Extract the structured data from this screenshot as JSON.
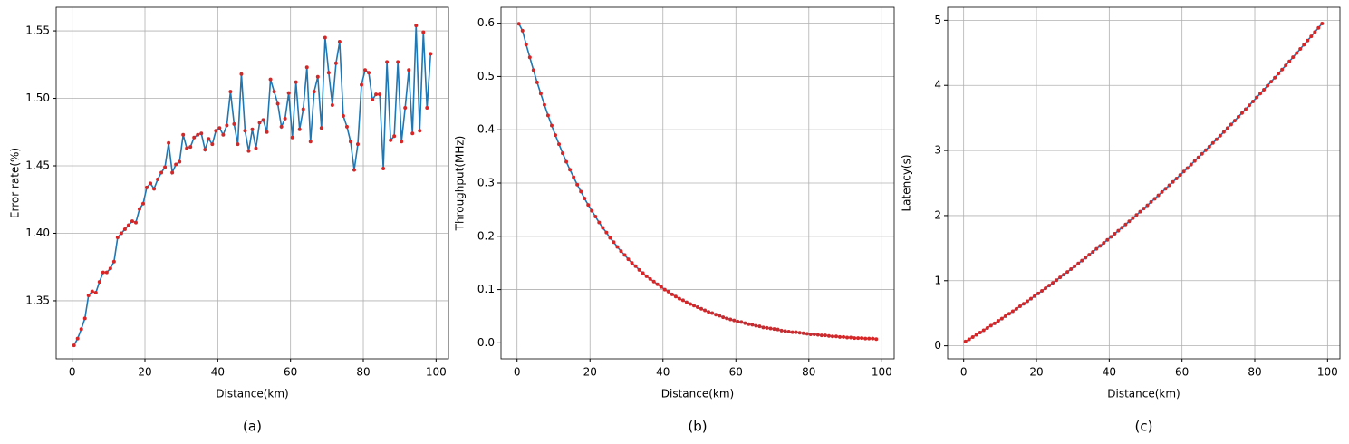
{
  "chart_data": [
    {
      "type": "line",
      "caption": "(a)",
      "xlabel": "Distance(km)",
      "ylabel": "Error rate(%)",
      "xlim": [
        -4.4,
        103.4
      ],
      "ylim": [
        1.307,
        1.5675
      ],
      "grid": true,
      "line_color": "#1f77b4",
      "marker_color": "#d62728",
      "xticks": [
        0,
        20,
        40,
        60,
        80,
        100
      ],
      "yticks": [
        1.35,
        {
          "value": 1.4,
          "label": "1.40"
        },
        1.45,
        {
          "value": 1.5,
          "label": "1.50"
        },
        1.55
      ],
      "x": [
        0.5,
        1.5,
        2.5,
        3.5,
        4.5,
        5.5,
        6.5,
        7.5,
        8.5,
        9.5,
        10.5,
        11.5,
        12.5,
        13.5,
        14.5,
        15.5,
        16.5,
        17.5,
        18.5,
        19.5,
        20.5,
        21.5,
        22.5,
        23.5,
        24.5,
        25.5,
        26.5,
        27.5,
        28.5,
        29.5,
        30.5,
        31.5,
        32.5,
        33.5,
        34.5,
        35.5,
        36.5,
        37.5,
        38.5,
        39.5,
        40.5,
        41.5,
        42.5,
        43.5,
        44.5,
        45.5,
        46.5,
        47.5,
        48.5,
        49.5,
        50.5,
        51.5,
        52.5,
        53.5,
        54.5,
        55.5,
        56.5,
        57.5,
        58.5,
        59.5,
        60.5,
        61.5,
        62.5,
        63.5,
        64.5,
        65.5,
        66.5,
        67.5,
        68.5,
        69.5,
        70.5,
        71.5,
        72.5,
        73.5,
        74.5,
        75.5,
        76.5,
        77.5,
        78.5,
        79.5,
        80.5,
        81.5,
        82.5,
        83.5,
        84.5,
        85.5,
        86.5,
        87.5,
        88.5,
        89.5,
        90.5,
        91.5,
        92.5,
        93.5,
        94.5,
        95.5,
        96.5,
        97.5,
        98.5
      ],
      "values": [
        1.317,
        1.322,
        1.329,
        1.337,
        1.354,
        1.357,
        1.356,
        1.364,
        1.371,
        1.371,
        1.374,
        1.379,
        1.397,
        1.4,
        1.403,
        1.406,
        1.409,
        1.408,
        1.418,
        1.422,
        1.434,
        1.437,
        1.433,
        1.44,
        1.445,
        1.449,
        1.467,
        1.445,
        1.451,
        1.453,
        1.473,
        1.463,
        1.464,
        1.471,
        1.473,
        1.474,
        1.462,
        1.47,
        1.466,
        1.476,
        1.478,
        1.473,
        1.48,
        1.505,
        1.481,
        1.466,
        1.518,
        1.476,
        1.461,
        1.477,
        1.463,
        1.482,
        1.484,
        1.475,
        1.514,
        1.505,
        1.496,
        1.479,
        1.485,
        1.504,
        1.471,
        1.512,
        1.477,
        1.492,
        1.523,
        1.468,
        1.505,
        1.516,
        1.478,
        1.545,
        1.519,
        1.495,
        1.526,
        1.542,
        1.487,
        1.479,
        1.468,
        1.447,
        1.466,
        1.51,
        1.521,
        1.519,
        1.499,
        1.503,
        1.503,
        1.448,
        1.527,
        1.469,
        1.472,
        1.527,
        1.468,
        1.493,
        1.521,
        1.474,
        1.554,
        1.476,
        1.549,
        1.493,
        1.533
      ]
    },
    {
      "type": "line",
      "caption": "(b)",
      "xlabel": "Distance(km)",
      "ylabel": "Throughput(MHz)",
      "xlim": [
        -4.4,
        103.4
      ],
      "ylim": [
        -0.03,
        0.63
      ],
      "grid": true,
      "line_color": "#1f77b4",
      "marker_color": "#d62728",
      "xticks": [
        0,
        20,
        40,
        60,
        80,
        100
      ],
      "yticks": [
        {
          "value": 0,
          "label": "0.0"
        },
        0.1,
        0.2,
        0.3,
        0.4,
        0.5,
        0.6
      ],
      "x": [
        0.5,
        1.5,
        2.5,
        3.5,
        4.5,
        5.5,
        6.5,
        7.5,
        8.5,
        9.5,
        10.5,
        11.5,
        12.5,
        13.5,
        14.5,
        15.5,
        16.5,
        17.5,
        18.5,
        19.5,
        20.5,
        21.5,
        22.5,
        23.5,
        24.5,
        25.5,
        26.5,
        27.5,
        28.5,
        29.5,
        30.5,
        31.5,
        32.5,
        33.5,
        34.5,
        35.5,
        36.5,
        37.5,
        38.5,
        39.5,
        40.5,
        41.5,
        42.5,
        43.5,
        44.5,
        45.5,
        46.5,
        47.5,
        48.5,
        49.5,
        50.5,
        51.5,
        52.5,
        53.5,
        54.5,
        55.5,
        56.5,
        57.5,
        58.5,
        59.5,
        60.5,
        61.5,
        62.5,
        63.5,
        64.5,
        65.5,
        66.5,
        67.5,
        68.5,
        69.5,
        70.5,
        71.5,
        72.5,
        73.5,
        74.5,
        75.5,
        76.5,
        77.5,
        78.5,
        79.5,
        80.5,
        81.5,
        82.5,
        83.5,
        84.5,
        85.5,
        86.5,
        87.5,
        88.5,
        89.5,
        90.5,
        91.5,
        92.5,
        93.5,
        94.5,
        95.5,
        96.5,
        97.5,
        98.5
      ],
      "values": [
        0.599,
        0.586,
        0.56,
        0.536,
        0.512,
        0.489,
        0.468,
        0.447,
        0.427,
        0.408,
        0.39,
        0.373,
        0.356,
        0.34,
        0.325,
        0.311,
        0.297,
        0.284,
        0.271,
        0.259,
        0.248,
        0.237,
        0.226,
        0.216,
        0.207,
        0.197,
        0.189,
        0.18,
        0.172,
        0.165,
        0.157,
        0.15,
        0.144,
        0.137,
        0.131,
        0.125,
        0.12,
        0.115,
        0.11,
        0.105,
        0.1,
        0.096,
        0.091,
        0.087,
        0.083,
        0.08,
        0.076,
        0.073,
        0.07,
        0.067,
        0.064,
        0.061,
        0.058,
        0.056,
        0.053,
        0.051,
        0.048,
        0.046,
        0.044,
        0.042,
        0.04,
        0.039,
        0.037,
        0.035,
        0.034,
        0.032,
        0.031,
        0.029,
        0.028,
        0.027,
        0.026,
        0.025,
        0.023,
        0.022,
        0.021,
        0.02,
        0.02,
        0.019,
        0.018,
        0.017,
        0.016,
        0.016,
        0.015,
        0.014,
        0.014,
        0.013,
        0.012,
        0.012,
        0.011,
        0.011,
        0.01,
        0.01,
        0.009,
        0.009,
        0.009,
        0.008,
        0.008,
        0.008,
        0.007
      ]
    },
    {
      "type": "line",
      "caption": "(c)",
      "xlabel": "Distance(km)",
      "ylabel": "Latency(s)",
      "xlim": [
        -4.4,
        103.4
      ],
      "ylim": [
        -0.2,
        5.2
      ],
      "grid": true,
      "line_color": "#1f77b4",
      "marker_color": "#d62728",
      "xticks": [
        0,
        20,
        40,
        60,
        80,
        100
      ],
      "yticks": [
        0,
        1,
        2,
        3,
        4,
        5
      ],
      "x": [
        0.5,
        1.5,
        2.5,
        3.5,
        4.5,
        5.5,
        6.5,
        7.5,
        8.5,
        9.5,
        10.5,
        11.5,
        12.5,
        13.5,
        14.5,
        15.5,
        16.5,
        17.5,
        18.5,
        19.5,
        20.5,
        21.5,
        22.5,
        23.5,
        24.5,
        25.5,
        26.5,
        27.5,
        28.5,
        29.5,
        30.5,
        31.5,
        32.5,
        33.5,
        34.5,
        35.5,
        36.5,
        37.5,
        38.5,
        39.5,
        40.5,
        41.5,
        42.5,
        43.5,
        44.5,
        45.5,
        46.5,
        47.5,
        48.5,
        49.5,
        50.5,
        51.5,
        52.5,
        53.5,
        54.5,
        55.5,
        56.5,
        57.5,
        58.5,
        59.5,
        60.5,
        61.5,
        62.5,
        63.5,
        64.5,
        65.5,
        66.5,
        67.5,
        68.5,
        69.5,
        70.5,
        71.5,
        72.5,
        73.5,
        74.5,
        75.5,
        76.5,
        77.5,
        78.5,
        79.5,
        80.5,
        81.5,
        82.5,
        83.5,
        84.5,
        85.5,
        86.5,
        87.5,
        88.5,
        89.5,
        90.5,
        91.5,
        92.5,
        93.5,
        94.5,
        95.5,
        96.5,
        97.5,
        98.5
      ],
      "values": [
        0.067,
        0.1,
        0.134,
        0.169,
        0.203,
        0.238,
        0.274,
        0.309,
        0.345,
        0.382,
        0.418,
        0.455,
        0.493,
        0.53,
        0.568,
        0.607,
        0.645,
        0.684,
        0.724,
        0.763,
        0.803,
        0.844,
        0.884,
        0.925,
        0.967,
        1.008,
        1.05,
        1.093,
        1.135,
        1.178,
        1.222,
        1.265,
        1.309,
        1.354,
        1.398,
        1.443,
        1.489,
        1.534,
        1.58,
        1.627,
        1.673,
        1.72,
        1.768,
        1.815,
        1.863,
        1.912,
        1.96,
        2.009,
        2.059,
        2.108,
        2.158,
        2.209,
        2.259,
        2.31,
        2.362,
        2.413,
        2.465,
        2.518,
        2.57,
        2.623,
        2.677,
        2.73,
        2.784,
        2.839,
        2.893,
        2.948,
        3.004,
        3.059,
        3.115,
        3.172,
        3.228,
        3.285,
        3.343,
        3.4,
        3.458,
        3.517,
        3.575,
        3.634,
        3.694,
        3.753,
        3.813,
        3.874,
        3.934,
        3.995,
        4.057,
        4.118,
        4.18,
        4.243,
        4.305,
        4.368,
        4.432,
        4.495,
        4.559,
        4.624,
        4.688,
        4.753,
        4.819,
        4.884,
        4.95
      ]
    }
  ]
}
